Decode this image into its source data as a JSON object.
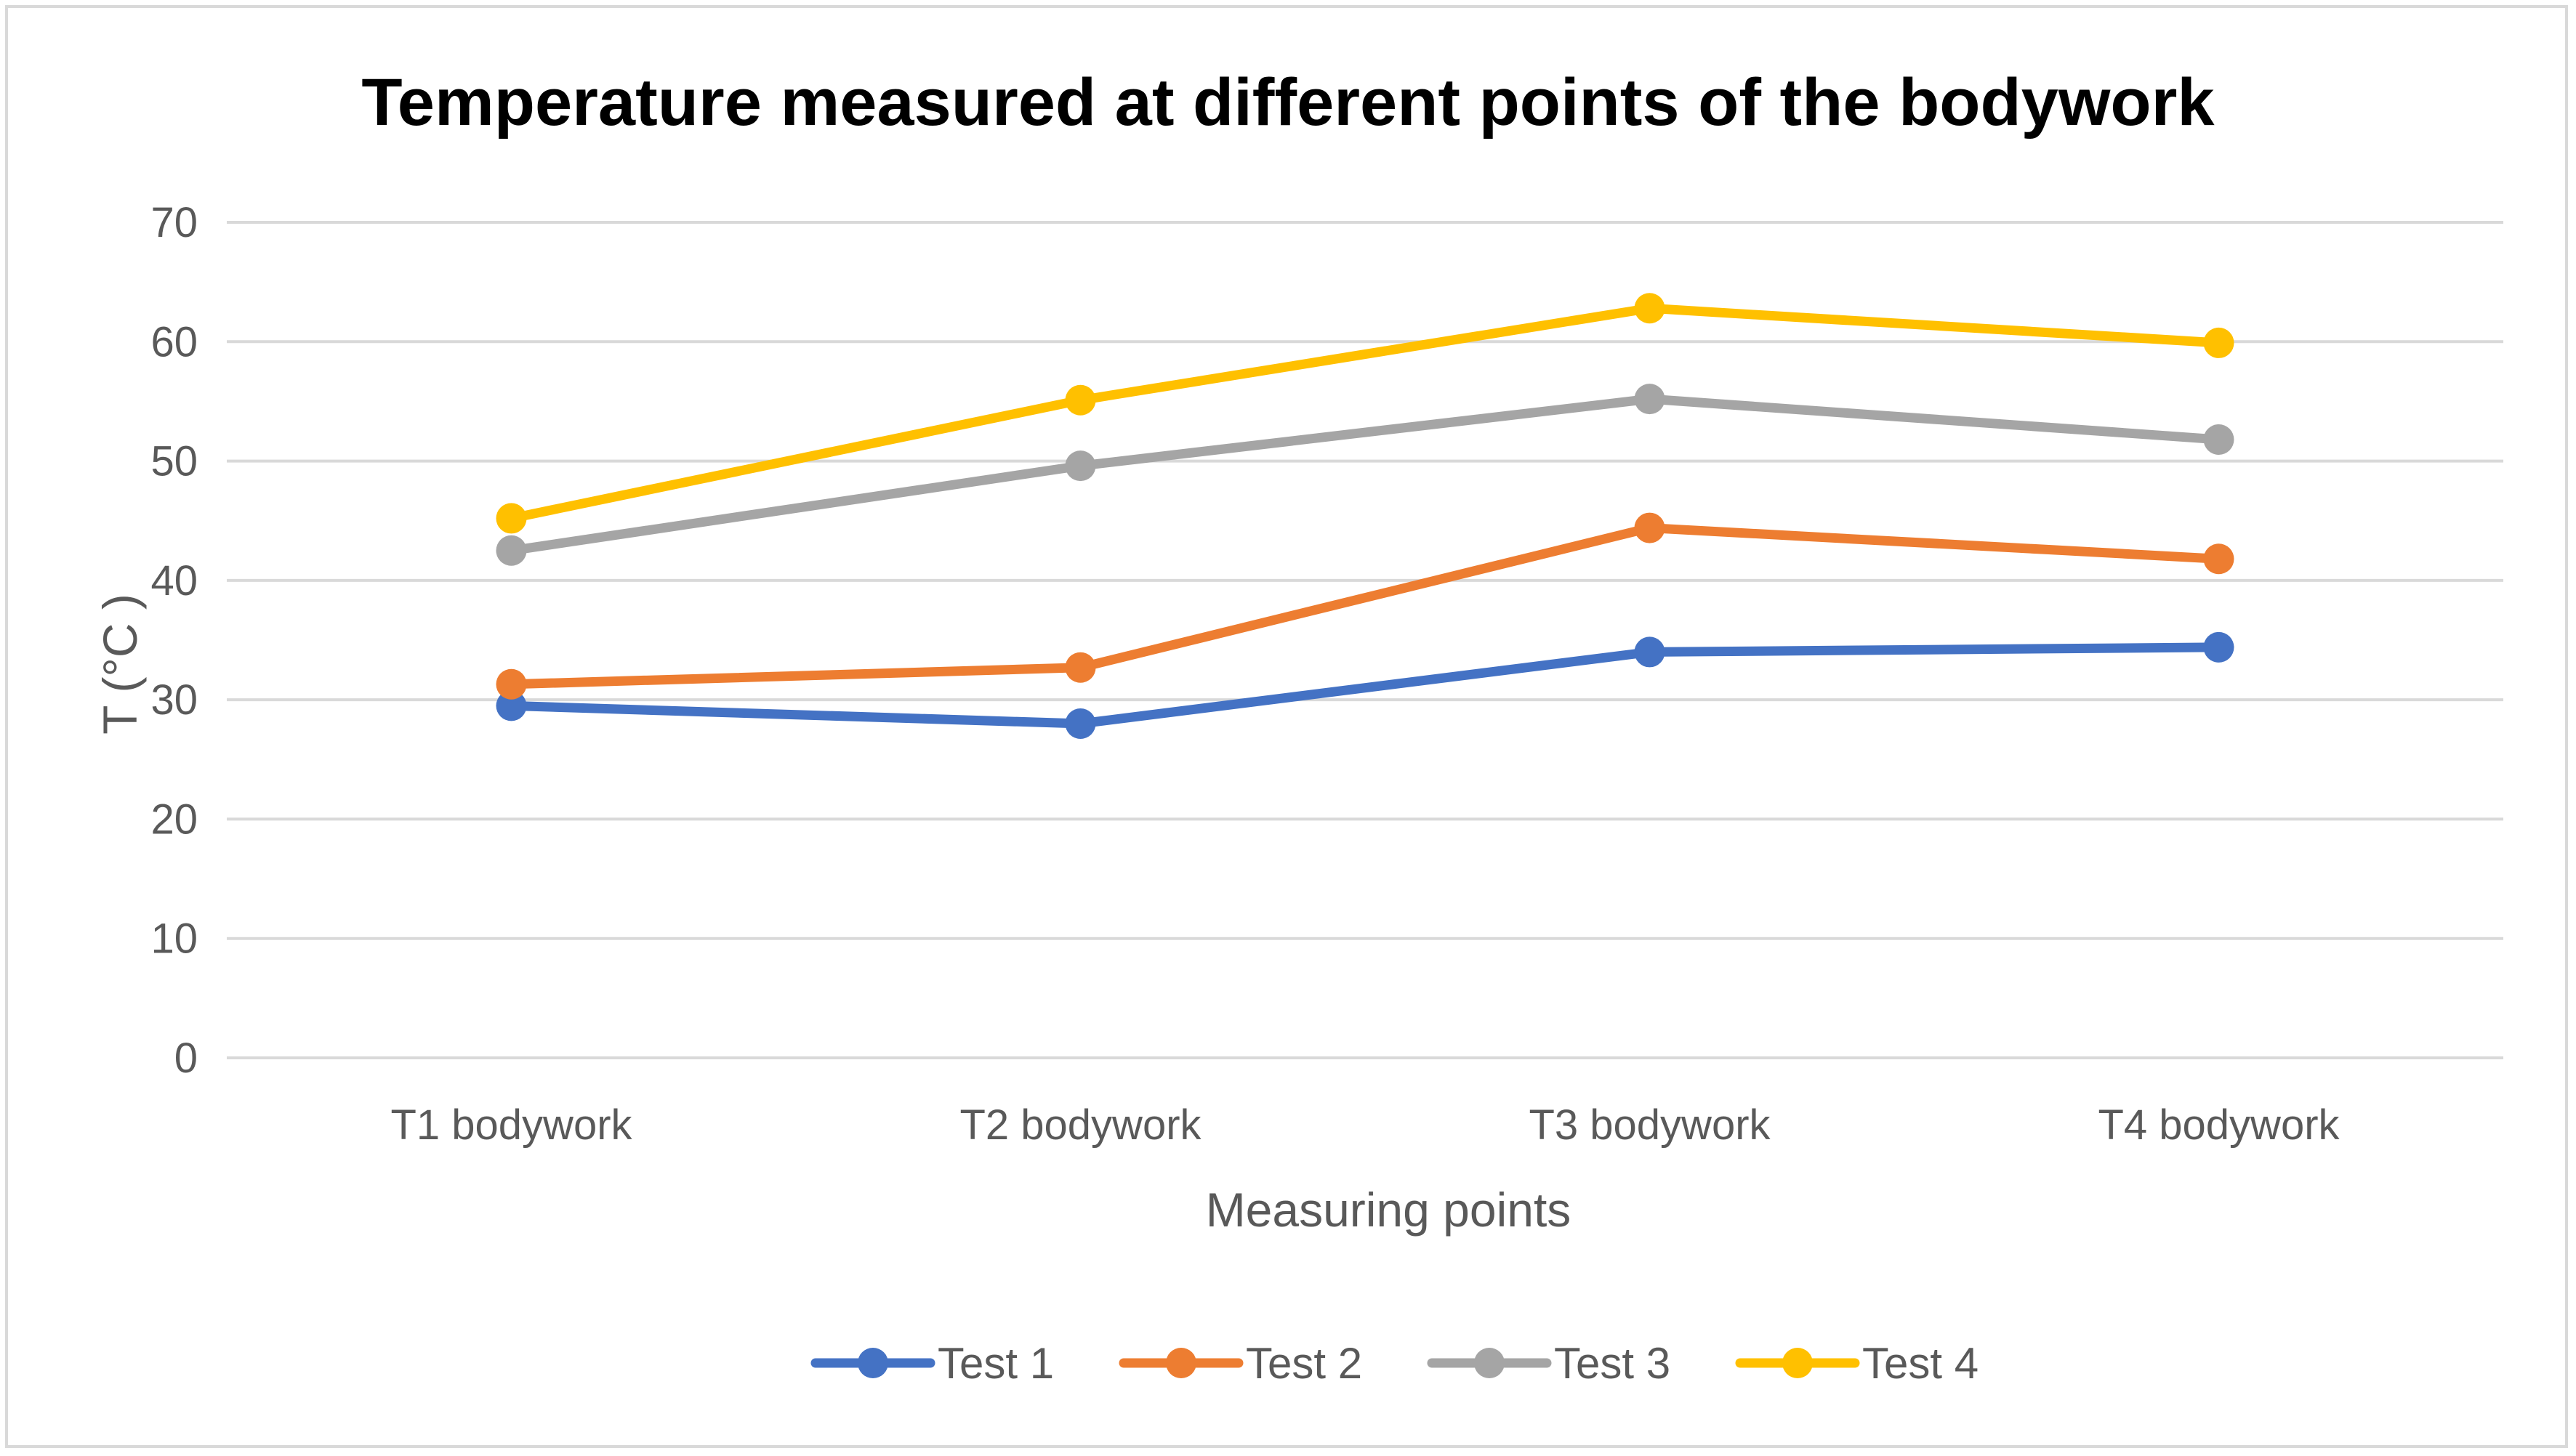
{
  "chart_data": {
    "type": "line",
    "title": "Temperature measured at different points of the bodywork",
    "xlabel": "Measuring points",
    "ylabel": "T (°C )",
    "categories": [
      "T1 bodywork",
      "T2 bodywork",
      "T3 bodywork",
      "T4 bodywork"
    ],
    "ylim": [
      0,
      70
    ],
    "yticks": [
      0,
      10,
      20,
      30,
      40,
      50,
      60,
      70
    ],
    "grid": true,
    "legend_position": "bottom",
    "series": [
      {
        "name": "Test 1",
        "color": "#4472C4",
        "values": [
          29.5,
          28.0,
          34.0,
          34.4
        ]
      },
      {
        "name": "Test 2",
        "color": "#ED7D31",
        "values": [
          31.3,
          32.7,
          44.4,
          41.8
        ]
      },
      {
        "name": "Test 3",
        "color": "#A5A5A5",
        "values": [
          42.5,
          49.6,
          55.2,
          51.8
        ]
      },
      {
        "name": "Test 4",
        "color": "#FFC000",
        "values": [
          45.2,
          55.1,
          62.8,
          59.9
        ]
      }
    ],
    "gridline_color": "#d9d9d9"
  }
}
